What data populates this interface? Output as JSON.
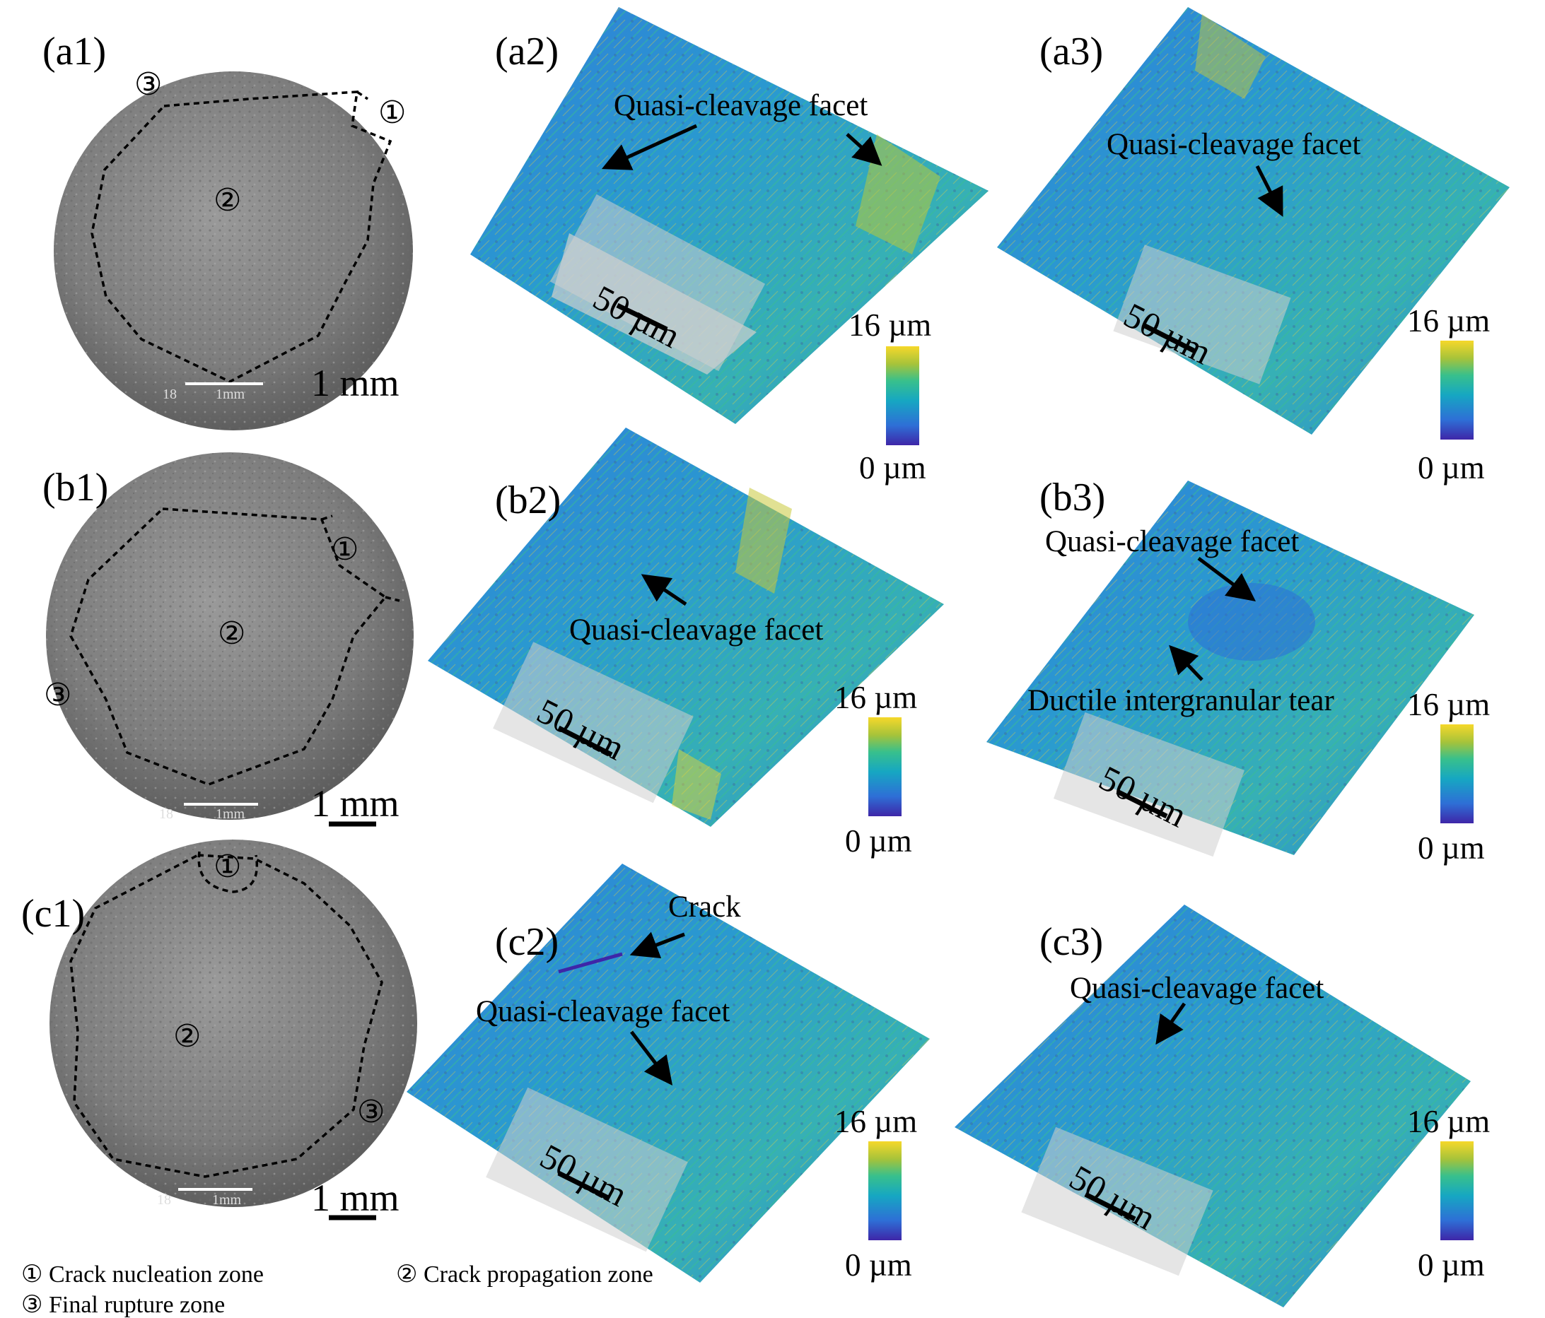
{
  "panels": {
    "a1": "(a1)",
    "a2": "(a2)",
    "a3": "(a3)",
    "b1": "(b1)",
    "b2": "(b2)",
    "b3": "(b3)",
    "c1": "(c1)",
    "c2": "(c2)",
    "c3": "(c3)"
  },
  "annotations": {
    "quasi_cleavage": "Quasi-cleavage facet",
    "ductile_tear": "Ductile intergranular tear",
    "crack": "Crack"
  },
  "scale": {
    "sem": "1 mm",
    "sem_bar_text": "1mm",
    "sem_id": "18",
    "map": "50 µm",
    "cb_max": "16 µm",
    "cb_min": "0 µm"
  },
  "zones": {
    "z1_num": "①",
    "z2_num": "②",
    "z3_num": "③",
    "z1": "① Crack nucleation zone",
    "z2": "② Crack propagation zone",
    "z3": "③ Final rupture zone"
  },
  "colors": {
    "colormap": [
      "#3e26a8",
      "#2e6fd6",
      "#16a7c2",
      "#38c08c",
      "#a6c33a",
      "#f6d82a"
    ],
    "map_base": "#2f86d8",
    "sem_gray": "#8a8a8a"
  }
}
